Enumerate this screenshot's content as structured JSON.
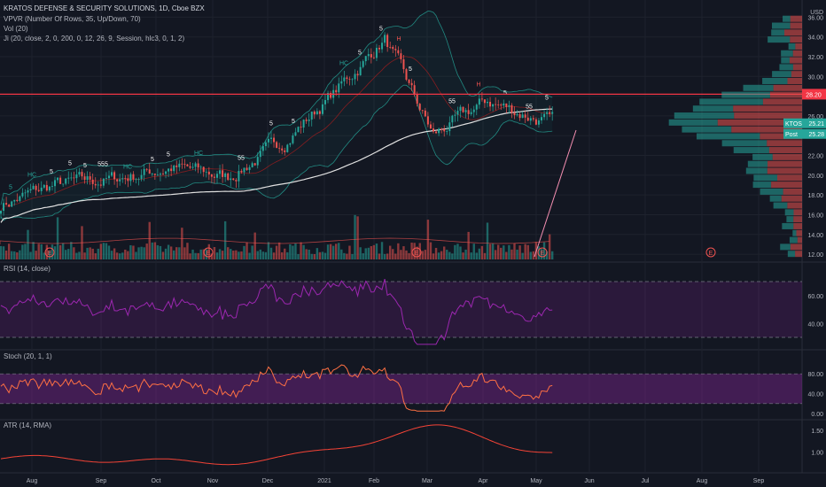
{
  "header": {
    "title": "KRATOS DEFENSE & SECURITY SOLUTIONS, 1D, Cboe BZX",
    "indicators": [
      "VPVR (Number Of Rows, 35, Up/Down, 70)",
      "Vol (20)",
      "Ji (20, close, 2, 0, 200, 0, 12, 26, 9, Session, hlc3, 0, 1, 2)"
    ]
  },
  "price_axis": {
    "currency": "USD",
    "ticks": [
      "36.00",
      "34.00",
      "32.00",
      "30.00",
      "28.00",
      "26.00",
      "24.00",
      "22.00",
      "20.00",
      "18.00",
      "16.00",
      "14.00",
      "12.00"
    ],
    "range": [
      11.2,
      37.2
    ]
  },
  "resistance": {
    "value": "28.20",
    "color": "#f23645"
  },
  "last_price": {
    "symbol": "KTOS",
    "value": "25.21",
    "post_label": "Post",
    "post_value": "25.28",
    "color": "#26a69a"
  },
  "rsi": {
    "label": "RSI (14, close)",
    "ticks": [
      "60.00",
      "40.00"
    ],
    "bands": [
      70,
      30
    ]
  },
  "stoch": {
    "label": "Stoch (20, 1, 1)",
    "ticks": [
      "80.00",
      "40.00",
      "0.00"
    ],
    "bands": [
      80,
      20
    ]
  },
  "atr": {
    "label": "ATR (14, RMA)",
    "ticks": [
      "1.50",
      "1.00"
    ]
  },
  "time_axis": [
    "Aug",
    "Sep",
    "Oct",
    "Nov",
    "Dec",
    "2021",
    "Feb",
    "Mar",
    "Apr",
    "May",
    "Jun",
    "Jul",
    "Aug",
    "Sep"
  ],
  "earnings_marker": "E",
  "colors": {
    "up": "#26a69a",
    "down": "#ef5350",
    "rsi": "#9c27b0",
    "stoch": "#ff7043",
    "atr": "#f44336",
    "sma": "#e0e0e0",
    "bg": "#131722"
  },
  "chart_data": {
    "type": "line",
    "title": "KRATOS DEFENSE & SECURITY SOLUTIONS, 1D, Cboe BZX",
    "xlabel": "",
    "ylabel": "USD",
    "ylim": [
      11.2,
      37.2
    ],
    "x": [
      "Jul",
      "Aug",
      "Sep",
      "Oct",
      "Nov",
      "Dec",
      "2021",
      "Feb",
      "Mar",
      "Apr",
      "May"
    ],
    "series": [
      {
        "name": "KTOS",
        "values": [
          17.0,
          19.0,
          19.6,
          20.8,
          19.8,
          23.5,
          28.5,
          33.8,
          24.0,
          27.5,
          25.21
        ]
      }
    ]
  }
}
